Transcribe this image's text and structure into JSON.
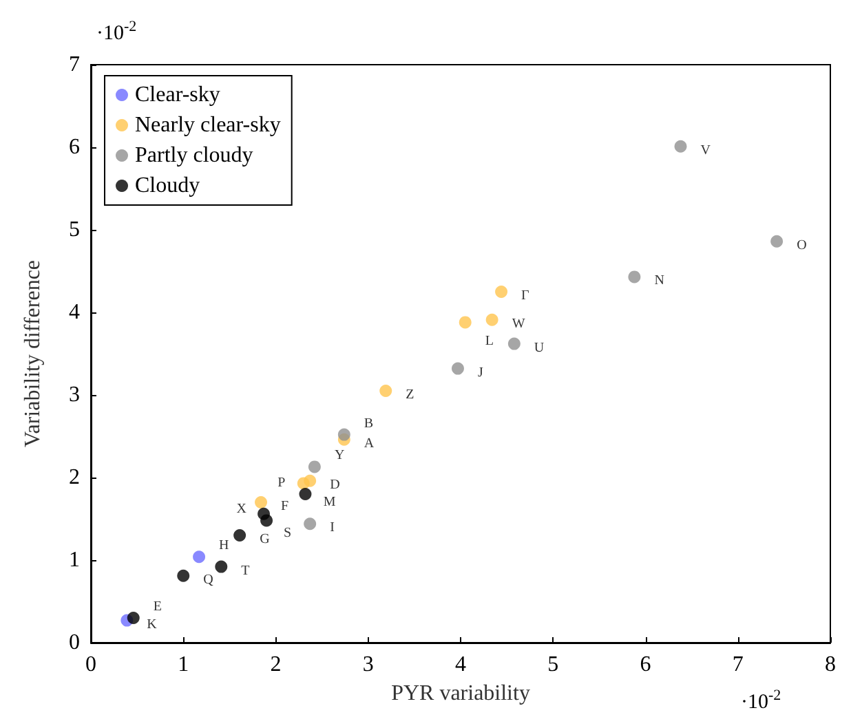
{
  "chart_data": {
    "type": "scatter",
    "xlabel": "PYR variability",
    "ylabel": "Variability difference",
    "annotations": [
      "·10$^{-2}$",
      "·10$^{-2}$"
    ],
    "xlim": [
      0,
      8
    ],
    "xticks": [
      0,
      1,
      2,
      3,
      4,
      5,
      6,
      7,
      8
    ],
    "ylim": [
      0,
      7
    ],
    "yticks": [
      0,
      1,
      2,
      3,
      4,
      5,
      6,
      7
    ],
    "grid": false,
    "legend": "top left",
    "marker": "circle",
    "series": [
      {
        "name": "Clear-sky",
        "color": "#6b6bff",
        "x": [
          0.39,
          1.17
        ],
        "values": [
          0.27,
          1.04
        ],
        "value_labels": [
          "K",
          "H"
        ]
      },
      {
        "name": "Nearly clear-sky",
        "color": "#ffc44d",
        "x": [
          2.74,
          2.37,
          2.3,
          1.84,
          4.44,
          4.05,
          4.34,
          3.19
        ],
        "values": [
          2.46,
          1.96,
          1.93,
          1.7,
          4.25,
          3.88,
          3.91,
          3.05
        ],
        "value_labels": [
          "A",
          "D",
          "M",
          "F",
          "Γ",
          "L",
          "W",
          "Z"
        ]
      },
      {
        "name": "Partly cloudy",
        "color": "#909090",
        "x": [
          2.74,
          2.42,
          2.37,
          4.58,
          3.97,
          6.38,
          7.42,
          5.88
        ],
        "values": [
          2.52,
          2.13,
          1.44,
          3.62,
          3.32,
          6.01,
          4.86,
          4.43
        ],
        "value_labels": [
          "B",
          "Y",
          "I",
          "U",
          "J",
          "V",
          "O",
          "N"
        ]
      },
      {
        "name": "Cloudy",
        "color": "#000000",
        "x": [
          0.46,
          1.0,
          1.41,
          1.61,
          1.87,
          1.9,
          2.32
        ],
        "values": [
          0.3,
          0.81,
          0.92,
          1.3,
          1.56,
          1.48,
          1.8
        ],
        "value_labels": [
          "E",
          "Q",
          "T",
          "G",
          "S",
          "X",
          "P"
        ]
      }
    ]
  }
}
